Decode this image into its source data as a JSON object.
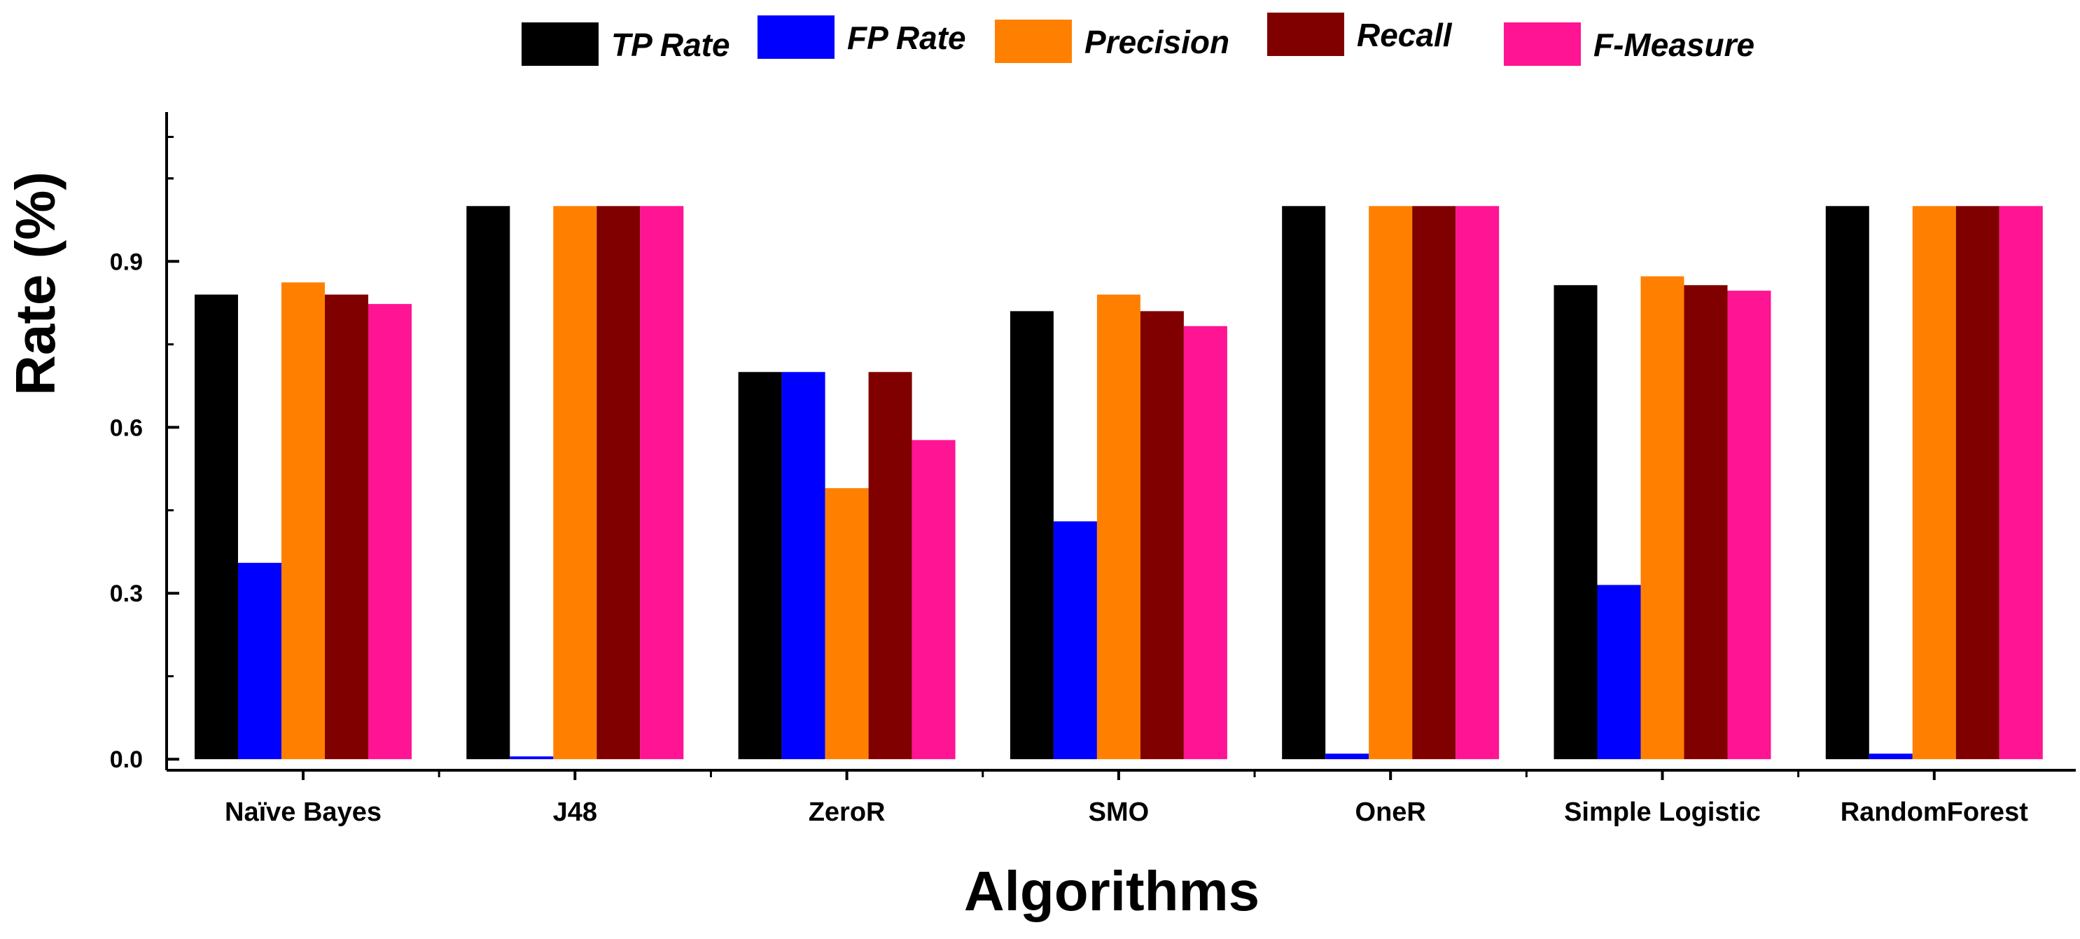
{
  "chart_data": {
    "type": "bar",
    "title": "",
    "xlabel": "Algorithms",
    "ylabel": "Rate (%)",
    "ylim": [
      -0.02,
      1.17
    ],
    "yticks": [
      0.0,
      0.3,
      0.6,
      0.9
    ],
    "ytick_labels": [
      "0.0",
      "0.3",
      "0.6",
      "0.9"
    ],
    "grid": false,
    "legend_position": "top",
    "categories": [
      "Naïve Bayes",
      "J48",
      "ZeroR",
      "SMO",
      "OneR",
      "Simple Logistic",
      "RandomForest"
    ],
    "series": [
      {
        "name": "TP Rate",
        "color": "#000000",
        "values": [
          0.84,
          1.0,
          0.7,
          0.81,
          1.0,
          0.857,
          1.0
        ]
      },
      {
        "name": "FP Rate",
        "color": "#0000ff",
        "values": [
          0.355,
          0.005,
          0.7,
          0.43,
          0.01,
          0.315,
          0.01
        ]
      },
      {
        "name": "Precision",
        "color": "#ff8000",
        "values": [
          0.862,
          1.0,
          0.49,
          0.84,
          1.0,
          0.873,
          1.0
        ]
      },
      {
        "name": "Recall",
        "color": "#800000",
        "values": [
          0.84,
          1.0,
          0.7,
          0.81,
          1.0,
          0.857,
          1.0
        ]
      },
      {
        "name": "F-Measure",
        "color": "#ff1493",
        "values": [
          0.823,
          1.0,
          0.577,
          0.783,
          1.0,
          0.847,
          1.0
        ]
      }
    ]
  }
}
